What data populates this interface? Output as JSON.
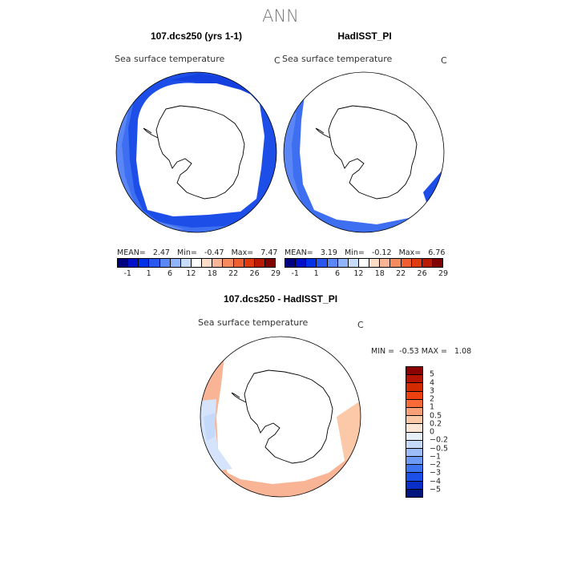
{
  "title": "ANN",
  "panels": [
    {
      "title": "107.dcs250 (yrs 1-1)",
      "variable": "Sea surface temperature",
      "unit": "C",
      "stats": {
        "mean_label": "MEAN=",
        "mean": "2.47",
        "min_label": "Min=",
        "min": "-0.47",
        "max_label": "Max=",
        "max": "7.47"
      }
    },
    {
      "title": "HadISST_PI",
      "variable": "Sea surface temperature",
      "unit": "C",
      "stats": {
        "mean_label": "MEAN=",
        "mean": "3.19",
        "min_label": "Min=",
        "min": "-0.12",
        "max_label": "Max=",
        "max": "6.76"
      }
    },
    {
      "title": "107.dcs250 - HadISST_PI",
      "variable": "Sea surface temperature",
      "unit": "C",
      "stats": {
        "min_label": "MIN =",
        "min": "-0.53",
        "max_label": "MAX =",
        "max": "1.08"
      }
    }
  ],
  "colorbar_abs": {
    "ticks": [
      "-1",
      "1",
      "6",
      "12",
      "18",
      "22",
      "26",
      "29"
    ],
    "colors": [
      "#000080",
      "#0010c8",
      "#0030e8",
      "#2a56f0",
      "#5b86f5",
      "#90b4fa",
      "#c8dcfd",
      "#ffffff",
      "#fddcc8",
      "#f9b495",
      "#f58a60",
      "#ef5f33",
      "#e03a10",
      "#b81a05",
      "#800000"
    ]
  },
  "colorbar_diff": {
    "ticks": [
      "5",
      "4",
      "3",
      "2",
      "1",
      "0.5",
      "0.2",
      "0",
      "−0.2",
      "−0.5",
      "−1",
      "−2",
      "−3",
      "−4",
      "−5"
    ],
    "colors": [
      "#8b0000",
      "#b51500",
      "#d42a00",
      "#ef4010",
      "#f86a38",
      "#f9a078",
      "#fbc8a8",
      "#fde6d6",
      "#e6effc",
      "#c5d9fb",
      "#9dbdf8",
      "#6d9af5",
      "#3f74f0",
      "#1c4ee8",
      "#0a2fc8",
      "#00167f"
    ]
  }
}
